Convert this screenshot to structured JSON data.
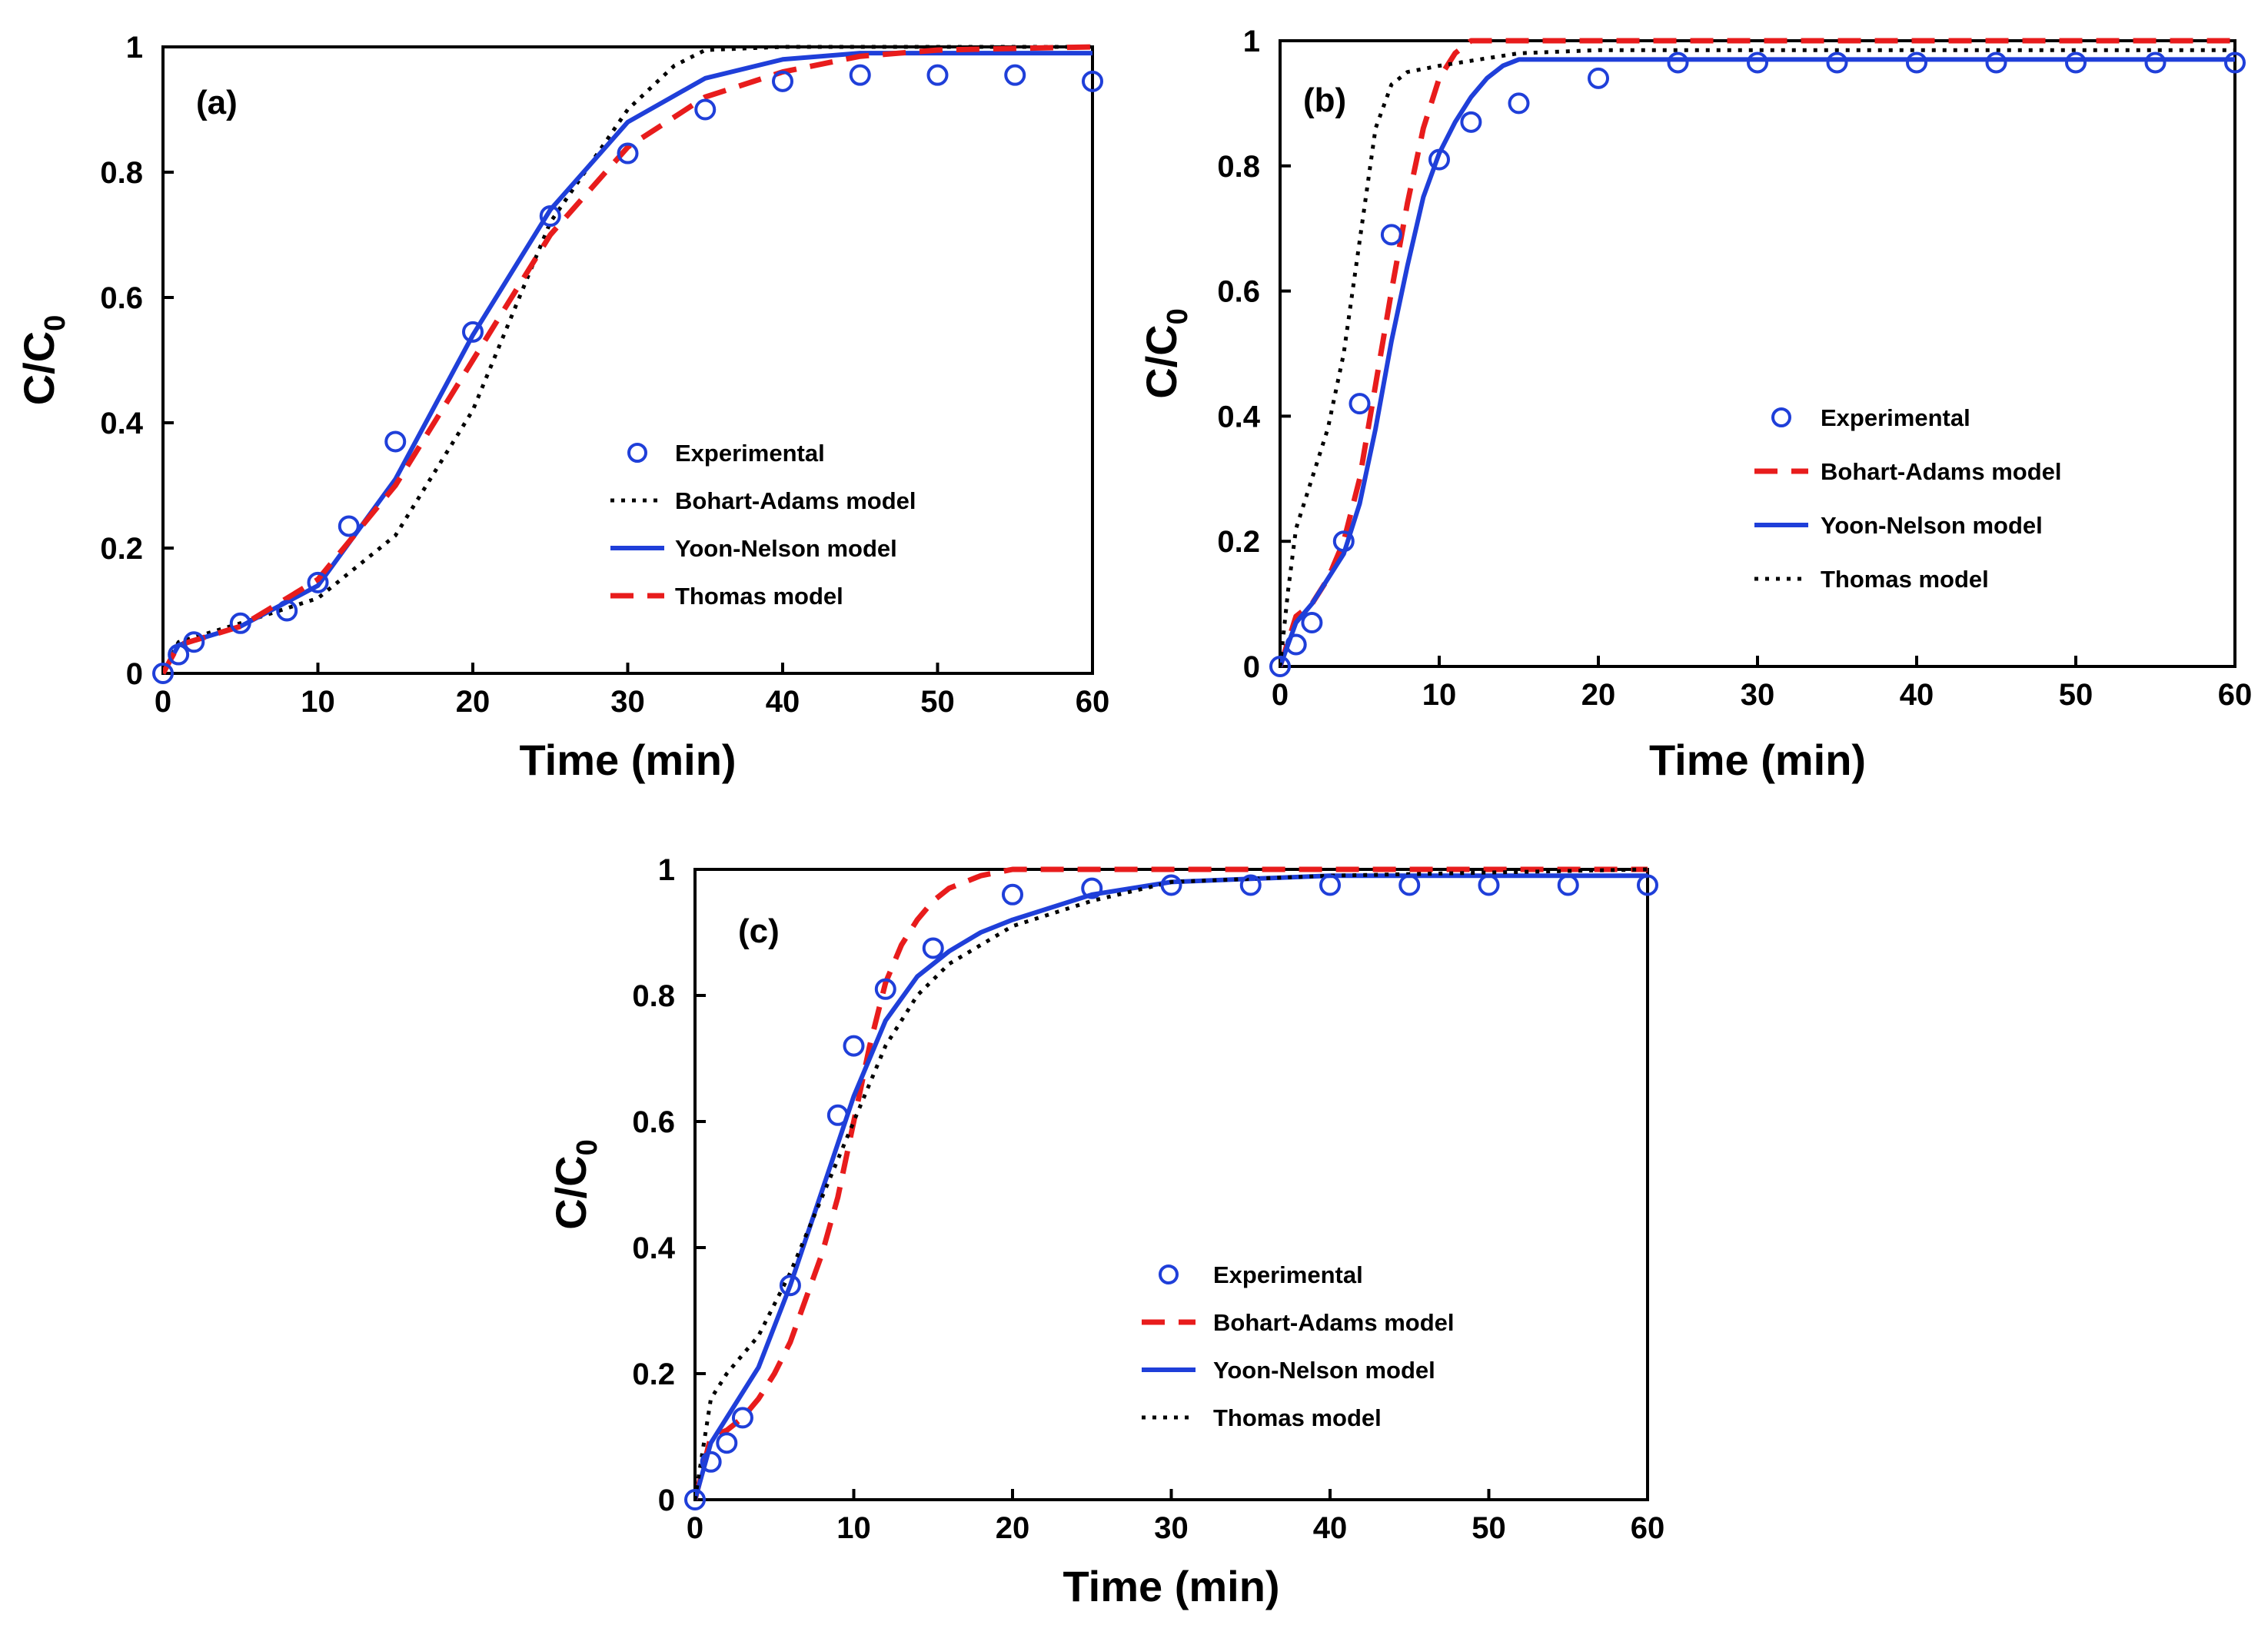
{
  "chart_data": [
    {
      "type": "line",
      "panel_label": "(a)",
      "xlabel": "Time (min)",
      "ylabel": "C/C",
      "ylabel_sub": "0",
      "xlim": [
        0,
        60
      ],
      "ylim": [
        0,
        1
      ],
      "xticks": [
        "0",
        "10",
        "20",
        "30",
        "40",
        "50",
        "60"
      ],
      "yticks": [
        "0",
        "0.2",
        "0.4",
        "0.6",
        "0.8",
        "1"
      ],
      "legend_position": "center-right",
      "series": [
        {
          "name": "Experimental",
          "kind": "markers",
          "color": "#1f3fd9",
          "x": [
            0,
            1,
            2,
            5,
            8,
            10,
            12,
            15,
            20,
            25,
            30,
            35,
            40,
            45,
            50,
            55,
            60
          ],
          "y": [
            0,
            0.03,
            0.05,
            0.08,
            0.1,
            0.145,
            0.235,
            0.37,
            0.545,
            0.73,
            0.83,
            0.9,
            0.945,
            0.955,
            0.955,
            0.955,
            0.945
          ]
        },
        {
          "name": "Bohart-Adams model",
          "kind": "dotted",
          "color": "#000000",
          "x": [
            0,
            1,
            5,
            10,
            15,
            20,
            22,
            25,
            30,
            33,
            35,
            40,
            60
          ],
          "y": [
            0,
            0.05,
            0.08,
            0.12,
            0.22,
            0.42,
            0.54,
            0.72,
            0.9,
            0.97,
            0.995,
            1,
            1
          ]
        },
        {
          "name": "Yoon-Nelson model",
          "kind": "solid",
          "color": "#1f3fd9",
          "x": [
            0,
            1,
            5,
            10,
            15,
            20,
            25,
            30,
            35,
            40,
            45,
            50,
            60
          ],
          "y": [
            0,
            0.045,
            0.075,
            0.14,
            0.31,
            0.54,
            0.74,
            0.88,
            0.95,
            0.98,
            0.99,
            0.99,
            0.99
          ]
        },
        {
          "name": "Thomas model",
          "kind": "dashed",
          "color": "#e81c1c",
          "x": [
            0,
            1,
            5,
            10,
            15,
            20,
            25,
            30,
            35,
            40,
            45,
            50,
            60
          ],
          "y": [
            0,
            0.045,
            0.075,
            0.15,
            0.3,
            0.5,
            0.7,
            0.84,
            0.92,
            0.96,
            0.985,
            0.995,
            1
          ]
        }
      ]
    },
    {
      "type": "line",
      "panel_label": "(b)",
      "xlabel": "Time (min)",
      "ylabel": "C/C",
      "ylabel_sub": "0",
      "xlim": [
        0,
        60
      ],
      "ylim": [
        0,
        1
      ],
      "xticks": [
        "0",
        "10",
        "20",
        "30",
        "40",
        "50",
        "60"
      ],
      "yticks": [
        "0",
        "0.2",
        "0.4",
        "0.6",
        "0.8",
        "1"
      ],
      "legend_position": "center-right",
      "series": [
        {
          "name": "Experimental",
          "kind": "markers",
          "color": "#1f3fd9",
          "x": [
            0,
            1,
            2,
            4,
            5,
            7,
            10,
            12,
            15,
            20,
            25,
            30,
            35,
            40,
            45,
            50,
            55,
            60
          ],
          "y": [
            0,
            0.035,
            0.07,
            0.2,
            0.42,
            0.69,
            0.81,
            0.87,
            0.9,
            0.94,
            0.965,
            0.965,
            0.965,
            0.965,
            0.965,
            0.965,
            0.965,
            0.965
          ]
        },
        {
          "name": "Bohart-Adams model",
          "kind": "dashed",
          "color": "#e81c1c",
          "x": [
            0,
            1,
            2,
            3,
            4,
            5,
            6,
            7,
            8,
            9,
            10,
            11,
            12,
            60
          ],
          "y": [
            0,
            0.08,
            0.1,
            0.14,
            0.2,
            0.3,
            0.45,
            0.6,
            0.74,
            0.86,
            0.94,
            0.98,
            1,
            1
          ]
        },
        {
          "name": "Yoon-Nelson model",
          "kind": "solid",
          "color": "#1f3fd9",
          "x": [
            0,
            1,
            2,
            3,
            4,
            5,
            6,
            7,
            8,
            9,
            10,
            11,
            12,
            13,
            14,
            15,
            17,
            60
          ],
          "y": [
            0,
            0.07,
            0.1,
            0.14,
            0.18,
            0.26,
            0.38,
            0.52,
            0.64,
            0.75,
            0.82,
            0.87,
            0.91,
            0.94,
            0.96,
            0.97,
            0.97,
            0.97
          ]
        },
        {
          "name": "Thomas model",
          "kind": "dotted",
          "color": "#000000",
          "x": [
            0,
            0.5,
            1,
            2,
            3,
            4,
            5,
            6,
            7,
            8,
            10,
            15,
            20,
            60
          ],
          "y": [
            0,
            0.12,
            0.22,
            0.3,
            0.38,
            0.5,
            0.68,
            0.86,
            0.93,
            0.95,
            0.96,
            0.98,
            0.985,
            0.985
          ]
        }
      ]
    },
    {
      "type": "line",
      "panel_label": "(c)",
      "xlabel": "Time (min)",
      "ylabel": "C/C",
      "ylabel_sub": "0",
      "xlim": [
        0,
        60
      ],
      "ylim": [
        0,
        1
      ],
      "xticks": [
        "0",
        "10",
        "20",
        "30",
        "40",
        "50",
        "60"
      ],
      "yticks": [
        "0",
        "0.2",
        "0.4",
        "0.6",
        "0.8",
        "1"
      ],
      "legend_position": "center",
      "series": [
        {
          "name": "Experimental",
          "kind": "markers",
          "color": "#1f3fd9",
          "x": [
            0,
            1,
            2,
            3,
            6,
            9,
            10,
            12,
            15,
            20,
            25,
            30,
            35,
            40,
            45,
            50,
            55,
            60
          ],
          "y": [
            0,
            0.06,
            0.09,
            0.13,
            0.34,
            0.61,
            0.72,
            0.81,
            0.875,
            0.96,
            0.97,
            0.975,
            0.975,
            0.975,
            0.975,
            0.975,
            0.975,
            0.975
          ]
        },
        {
          "name": "Bohart-Adams model",
          "kind": "dashed",
          "color": "#e81c1c",
          "x": [
            0,
            1,
            2,
            3,
            4,
            5,
            6,
            7,
            8,
            9,
            10,
            11,
            12,
            13,
            14,
            15,
            16,
            18,
            20,
            60
          ],
          "y": [
            0,
            0.1,
            0.11,
            0.13,
            0.16,
            0.2,
            0.25,
            0.32,
            0.39,
            0.48,
            0.6,
            0.72,
            0.82,
            0.88,
            0.92,
            0.95,
            0.97,
            0.99,
            1,
            1
          ]
        },
        {
          "name": "Yoon-Nelson model",
          "kind": "solid",
          "color": "#1f3fd9",
          "x": [
            0,
            1,
            2,
            4,
            6,
            8,
            10,
            12,
            14,
            16,
            18,
            20,
            25,
            30,
            40,
            60
          ],
          "y": [
            0,
            0.09,
            0.13,
            0.21,
            0.34,
            0.49,
            0.64,
            0.76,
            0.83,
            0.87,
            0.9,
            0.92,
            0.96,
            0.98,
            0.99,
            0.99
          ]
        },
        {
          "name": "Thomas model",
          "kind": "dotted",
          "color": "#000000",
          "x": [
            0,
            1,
            2,
            4,
            6,
            8,
            10,
            12,
            14,
            16,
            18,
            20,
            25,
            30,
            40,
            60
          ],
          "y": [
            0,
            0.16,
            0.2,
            0.26,
            0.36,
            0.48,
            0.6,
            0.72,
            0.8,
            0.85,
            0.88,
            0.91,
            0.95,
            0.98,
            0.99,
            1
          ]
        }
      ]
    }
  ]
}
